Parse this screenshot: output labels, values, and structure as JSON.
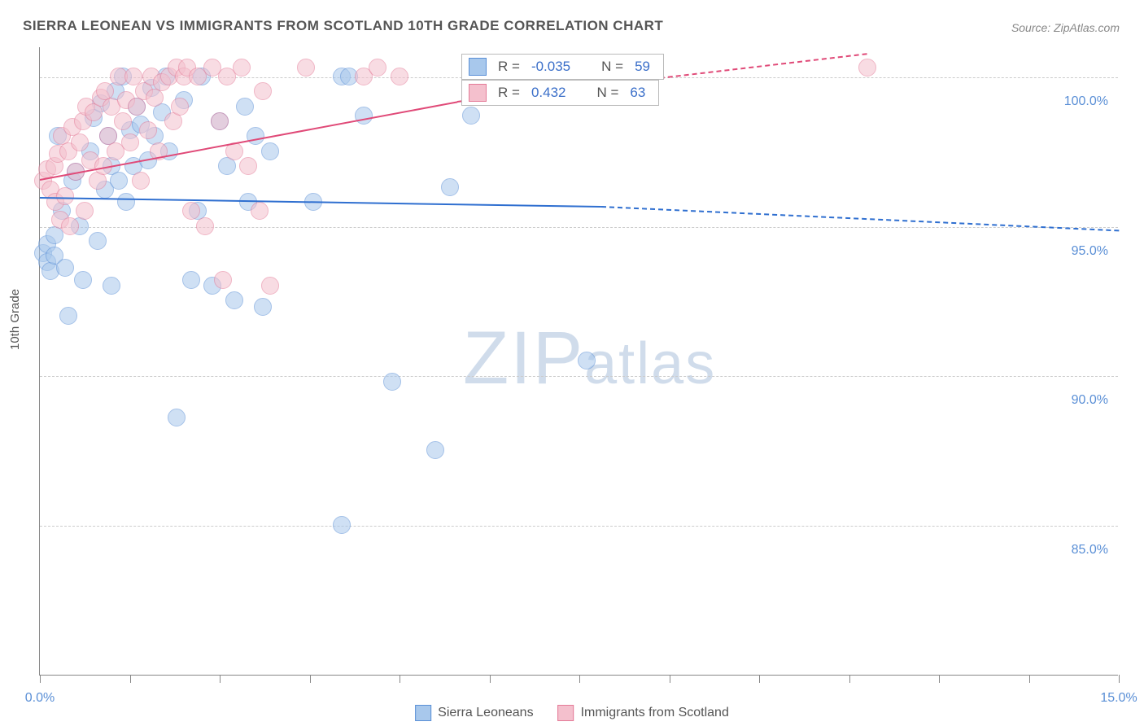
{
  "title": "SIERRA LEONEAN VS IMMIGRANTS FROM SCOTLAND 10TH GRADE CORRELATION CHART",
  "source": "Source: ZipAtlas.com",
  "ylabel": "10th Grade",
  "watermark": "ZIPatlas",
  "chart": {
    "type": "scatter",
    "background_color": "#ffffff",
    "grid_color": "#cccccc",
    "xlim": [
      0,
      15
    ],
    "ylim": [
      80,
      101
    ],
    "yticks": [
      {
        "value": 85,
        "label": "85.0%"
      },
      {
        "value": 90,
        "label": "90.0%"
      },
      {
        "value": 95,
        "label": "95.0%"
      },
      {
        "value": 100,
        "label": "100.0%"
      }
    ],
    "xticks_minor": [
      0,
      1.25,
      2.5,
      3.75,
      5,
      6.25,
      7.5,
      8.75,
      10,
      11.25,
      12.5,
      13.75,
      15
    ],
    "xtick_labels": [
      {
        "value": 0,
        "label": "0.0%"
      },
      {
        "value": 15,
        "label": "15.0%"
      }
    ],
    "marker_radius": 11,
    "marker_opacity": 0.55,
    "series": [
      {
        "name": "Sierra Leoneans",
        "fill": "#a8c8ec",
        "stroke": "#5a8fd6",
        "r_value": "-0.035",
        "n_value": "59",
        "trend": {
          "color": "#2f6fd0",
          "width": 2.5,
          "solid_from_x": 0,
          "solid_to_x": 7.8,
          "dash_to_x": 15,
          "y_start": 96.0,
          "y_mid": 95.7,
          "y_end": 94.9
        },
        "points": [
          [
            0.05,
            94.1
          ],
          [
            0.1,
            93.8
          ],
          [
            0.1,
            94.4
          ],
          [
            0.15,
            93.5
          ],
          [
            0.2,
            94.0
          ],
          [
            0.2,
            94.7
          ],
          [
            0.25,
            98.0
          ],
          [
            0.3,
            95.5
          ],
          [
            0.35,
            93.6
          ],
          [
            0.4,
            92.0
          ],
          [
            0.45,
            96.5
          ],
          [
            0.5,
            96.8
          ],
          [
            0.55,
            95.0
          ],
          [
            0.6,
            93.2
          ],
          [
            0.7,
            97.5
          ],
          [
            0.75,
            98.6
          ],
          [
            0.8,
            94.5
          ],
          [
            0.85,
            99.1
          ],
          [
            0.9,
            96.2
          ],
          [
            0.95,
            98.0
          ],
          [
            1.0,
            97.0
          ],
          [
            1.0,
            93.0
          ],
          [
            1.05,
            99.5
          ],
          [
            1.1,
            96.5
          ],
          [
            1.15,
            100.0
          ],
          [
            1.2,
            95.8
          ],
          [
            1.25,
            98.2
          ],
          [
            1.3,
            97.0
          ],
          [
            1.35,
            99.0
          ],
          [
            1.4,
            98.4
          ],
          [
            1.5,
            97.2
          ],
          [
            1.55,
            99.6
          ],
          [
            1.6,
            98.0
          ],
          [
            1.7,
            98.8
          ],
          [
            1.75,
            100.0
          ],
          [
            1.8,
            97.5
          ],
          [
            1.9,
            88.6
          ],
          [
            2.0,
            99.2
          ],
          [
            2.1,
            93.2
          ],
          [
            2.2,
            95.5
          ],
          [
            2.25,
            100.0
          ],
          [
            2.4,
            93.0
          ],
          [
            2.5,
            98.5
          ],
          [
            2.6,
            97.0
          ],
          [
            2.7,
            92.5
          ],
          [
            2.85,
            99.0
          ],
          [
            2.9,
            95.8
          ],
          [
            3.0,
            98.0
          ],
          [
            3.1,
            92.3
          ],
          [
            3.2,
            97.5
          ],
          [
            3.8,
            95.8
          ],
          [
            4.2,
            85.0
          ],
          [
            4.2,
            100.0
          ],
          [
            4.3,
            100.0
          ],
          [
            4.5,
            98.7
          ],
          [
            4.9,
            89.8
          ],
          [
            5.5,
            87.5
          ],
          [
            5.7,
            96.3
          ],
          [
            6.0,
            98.7
          ],
          [
            7.6,
            90.5
          ]
        ]
      },
      {
        "name": "Immigrants from Scotland",
        "fill": "#f4c0cd",
        "stroke": "#e47a97",
        "r_value": "0.432",
        "n_value": "63",
        "trend": {
          "color": "#e04a78",
          "width": 2.5,
          "solid_from_x": 0,
          "solid_to_x": 5.8,
          "dash_to_x": 11.5,
          "y_start": 96.6,
          "y_mid": 99.2,
          "y_end": 100.8
        },
        "points": [
          [
            0.05,
            96.5
          ],
          [
            0.1,
            96.9
          ],
          [
            0.15,
            96.2
          ],
          [
            0.2,
            97.0
          ],
          [
            0.22,
            95.8
          ],
          [
            0.25,
            97.4
          ],
          [
            0.28,
            95.2
          ],
          [
            0.3,
            98.0
          ],
          [
            0.35,
            96.0
          ],
          [
            0.4,
            97.5
          ],
          [
            0.42,
            95.0
          ],
          [
            0.45,
            98.3
          ],
          [
            0.5,
            96.8
          ],
          [
            0.55,
            97.8
          ],
          [
            0.6,
            98.5
          ],
          [
            0.62,
            95.5
          ],
          [
            0.65,
            99.0
          ],
          [
            0.7,
            97.2
          ],
          [
            0.75,
            98.8
          ],
          [
            0.8,
            96.5
          ],
          [
            0.85,
            99.3
          ],
          [
            0.88,
            97.0
          ],
          [
            0.9,
            99.5
          ],
          [
            0.95,
            98.0
          ],
          [
            1.0,
            99.0
          ],
          [
            1.05,
            97.5
          ],
          [
            1.1,
            100.0
          ],
          [
            1.15,
            98.5
          ],
          [
            1.2,
            99.2
          ],
          [
            1.25,
            97.8
          ],
          [
            1.3,
            100.0
          ],
          [
            1.35,
            99.0
          ],
          [
            1.4,
            96.5
          ],
          [
            1.45,
            99.5
          ],
          [
            1.5,
            98.2
          ],
          [
            1.55,
            100.0
          ],
          [
            1.6,
            99.3
          ],
          [
            1.65,
            97.5
          ],
          [
            1.7,
            99.8
          ],
          [
            1.8,
            100.0
          ],
          [
            1.85,
            98.5
          ],
          [
            1.9,
            100.3
          ],
          [
            1.95,
            99.0
          ],
          [
            2.0,
            100.0
          ],
          [
            2.05,
            100.3
          ],
          [
            2.1,
            95.5
          ],
          [
            2.2,
            100.0
          ],
          [
            2.3,
            95.0
          ],
          [
            2.4,
            100.3
          ],
          [
            2.5,
            98.5
          ],
          [
            2.55,
            93.2
          ],
          [
            2.6,
            100.0
          ],
          [
            2.7,
            97.5
          ],
          [
            2.8,
            100.3
          ],
          [
            2.9,
            97.0
          ],
          [
            3.05,
            95.5
          ],
          [
            3.1,
            99.5
          ],
          [
            3.2,
            93.0
          ],
          [
            3.7,
            100.3
          ],
          [
            4.5,
            100.0
          ],
          [
            4.7,
            100.3
          ],
          [
            5.0,
            100.0
          ],
          [
            11.5,
            100.3
          ]
        ]
      }
    ]
  },
  "stats_labels": {
    "r": "R =",
    "n": "N ="
  },
  "legend": [
    {
      "label": "Sierra Leoneans",
      "fill": "#a8c8ec",
      "stroke": "#5a8fd6"
    },
    {
      "label": "Immigrants from Scotland",
      "fill": "#f4c0cd",
      "stroke": "#e47a97"
    }
  ]
}
